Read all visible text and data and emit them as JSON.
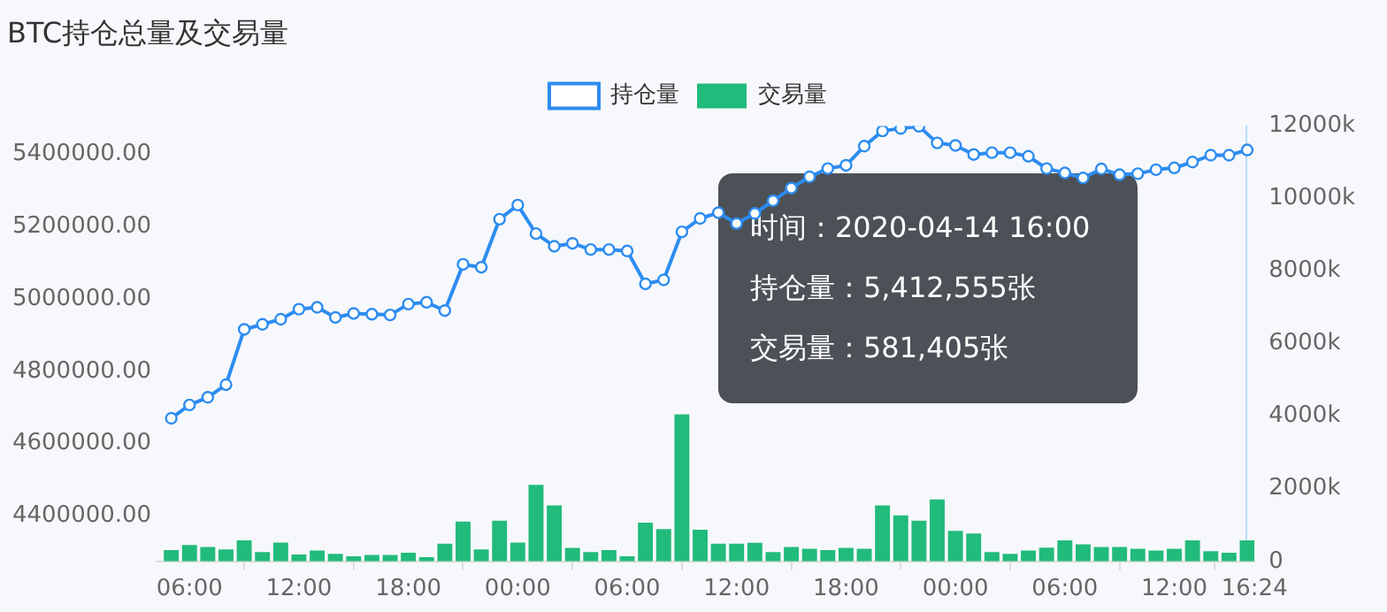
{
  "chart_data": {
    "type": "line",
    "title": "BTC持仓总量及交易量",
    "x": [
      "2020-04-12T05:00",
      "2020-04-12T06:00",
      "2020-04-12T07:00",
      "2020-04-12T08:00",
      "2020-04-12T09:00",
      "2020-04-12T10:00",
      "2020-04-12T11:00",
      "2020-04-12T12:00",
      "2020-04-12T13:00",
      "2020-04-12T14:00",
      "2020-04-12T15:00",
      "2020-04-12T16:00",
      "2020-04-12T17:00",
      "2020-04-12T18:00",
      "2020-04-12T19:00",
      "2020-04-12T20:00",
      "2020-04-12T21:00",
      "2020-04-12T22:00",
      "2020-04-12T23:00",
      "2020-04-13T00:00",
      "2020-04-13T01:00",
      "2020-04-13T02:00",
      "2020-04-13T03:00",
      "2020-04-13T04:00",
      "2020-04-13T05:00",
      "2020-04-13T06:00",
      "2020-04-13T07:00",
      "2020-04-13T08:00",
      "2020-04-13T09:00",
      "2020-04-13T10:00",
      "2020-04-13T11:00",
      "2020-04-13T12:00",
      "2020-04-13T13:00",
      "2020-04-13T14:00",
      "2020-04-13T15:00",
      "2020-04-13T16:00",
      "2020-04-13T17:00",
      "2020-04-13T18:00",
      "2020-04-13T19:00",
      "2020-04-13T20:00",
      "2020-04-13T21:00",
      "2020-04-13T22:00",
      "2020-04-13T23:00",
      "2020-04-14T00:00",
      "2020-04-14T01:00",
      "2020-04-14T02:00",
      "2020-04-14T03:00",
      "2020-04-14T04:00",
      "2020-04-14T05:00",
      "2020-04-14T06:00",
      "2020-04-14T07:00",
      "2020-04-14T08:00",
      "2020-04-14T09:00",
      "2020-04-14T10:00",
      "2020-04-14T11:00",
      "2020-04-14T12:00",
      "2020-04-14T13:00",
      "2020-04-14T14:00",
      "2020-04-14T15:00",
      "2020-04-14T16:00"
    ],
    "series": [
      {
        "name": "持仓量",
        "color": "#2d8cf0",
        "values": [
          4670000,
          4707000,
          4728000,
          4763000,
          4916000,
          4930000,
          4944000,
          4972000,
          4977000,
          4949000,
          4960000,
          4958000,
          4956000,
          4986000,
          4991000,
          4968000,
          5096000,
          5088000,
          5221000,
          5260000,
          5181000,
          5146000,
          5154000,
          5137000,
          5137000,
          5133000,
          5042000,
          5053000,
          5186000,
          5223000,
          5239000,
          5209000,
          5237000,
          5272000,
          5307000,
          5338000,
          5361000,
          5370000,
          5423000,
          5465000,
          5472000,
          5478000,
          5432000,
          5425000,
          5400000,
          5405000,
          5405000,
          5395000,
          5361000,
          5349000,
          5335000,
          5360000,
          5344000,
          5347000,
          5358000,
          5363000,
          5379000,
          5398000,
          5398000,
          5412555
        ]
      },
      {
        "name": "交易量",
        "type": "bar",
        "axis": "y2",
        "color": "#21bb7b",
        "values": [
          310000,
          450000,
          400000,
          330000,
          580000,
          260000,
          520000,
          190000,
          300000,
          210000,
          140000,
          180000,
          180000,
          240000,
          120000,
          490000,
          1100000,
          330000,
          1120000,
          520000,
          2110000,
          1540000,
          370000,
          260000,
          310000,
          140000,
          1070000,
          890000,
          4050000,
          870000,
          490000,
          490000,
          510000,
          260000,
          400000,
          350000,
          310000,
          370000,
          350000,
          1540000,
          1270000,
          1120000,
          1710000,
          840000,
          770000,
          260000,
          210000,
          300000,
          380000,
          580000,
          470000,
          400000,
          400000,
          350000,
          300000,
          350000,
          580000,
          280000,
          240000,
          581405
        ]
      }
    ],
    "xlim": [
      "2020-04-12T04:12",
      "2020-04-14T16:24"
    ],
    "xticks": [
      {
        "value": "2020-04-12T06:00",
        "label": "06:00"
      },
      {
        "value": "2020-04-12T12:00",
        "label": "12:00"
      },
      {
        "value": "2020-04-12T18:00",
        "label": "18:00"
      },
      {
        "value": "2020-04-13T00:00",
        "label": "00:00"
      },
      {
        "value": "2020-04-13T06:00",
        "label": "06:00"
      },
      {
        "value": "2020-04-13T12:00",
        "label": "12:00"
      },
      {
        "value": "2020-04-13T18:00",
        "label": "18:00"
      },
      {
        "value": "2020-04-14T00:00",
        "label": "00:00"
      },
      {
        "value": "2020-04-14T06:00",
        "label": "06:00"
      },
      {
        "value": "2020-04-14T12:00",
        "label": "12:00"
      },
      {
        "value": "2020-04-14T16:24",
        "label": "16:24"
      }
    ],
    "ylim": [
      4274000,
      5479000
    ],
    "yticks": [
      {
        "value": 4400000,
        "label": "4400000.00"
      },
      {
        "value": 4600000,
        "label": "4600000.00"
      },
      {
        "value": 4800000,
        "label": "4800000.00"
      },
      {
        "value": 5000000,
        "label": "5000000.00"
      },
      {
        "value": 5200000,
        "label": "5200000.00"
      },
      {
        "value": 5400000,
        "label": "5400000.00"
      }
    ],
    "y2lim": [
      0,
      12000000
    ],
    "y2ticks": [
      0,
      {
        "value": 2000000,
        "label": "2000k"
      },
      {
        "value": 4000000,
        "label": "4000k"
      },
      {
        "value": 6000000,
        "label": "6000k"
      },
      {
        "value": 8000000,
        "label": "8000k"
      },
      {
        "value": 10000000,
        "label": "10000k"
      },
      {
        "value": 12000000,
        "label": "12000k"
      }
    ],
    "annotations": [
      "时间：2020-04-14 16:00",
      "持仓量：5,412,555张",
      "交易量：581,405张"
    ],
    "marker": "circle",
    "legend": "top",
    "grid": false
  }
}
